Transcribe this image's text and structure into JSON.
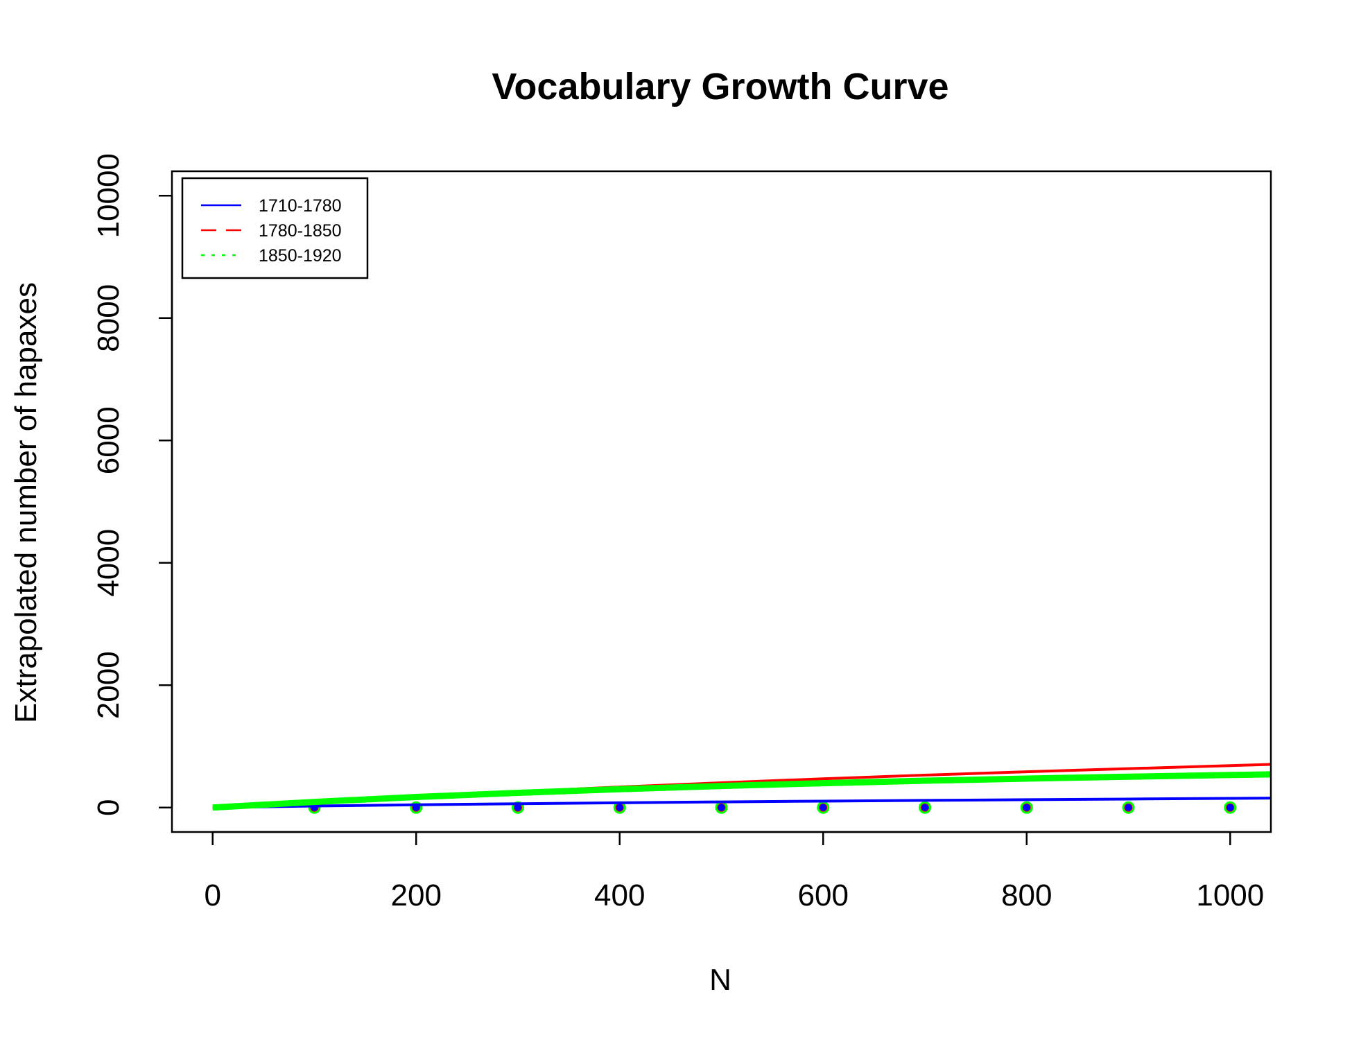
{
  "chart_data": {
    "type": "line",
    "title": "Vocabulary Growth Curve",
    "xlabel": "N",
    "ylabel": "Extrapolated number of hapaxes",
    "xlim": [
      -40,
      1040
    ],
    "ylim": [
      -400,
      10400
    ],
    "x_ticks": [
      0,
      200,
      400,
      600,
      800,
      1000
    ],
    "x_tick_labels": [
      "0",
      "200",
      "400",
      "600",
      "800",
      "1000"
    ],
    "y_ticks": [
      0,
      2000,
      4000,
      6000,
      8000,
      10000
    ],
    "y_tick_labels": [
      "0",
      "2000",
      "4000",
      "6000",
      "8000",
      "10000"
    ],
    "grid": false,
    "legend_position": "top-left",
    "x": [
      0,
      100,
      200,
      300,
      400,
      500,
      600,
      700,
      800,
      900,
      1000,
      1040
    ],
    "series": [
      {
        "name": "1710-1780",
        "color": "#0000ff",
        "dash": "solid",
        "values": [
          0,
          25,
          45,
          62,
          78,
          92,
          105,
          117,
          128,
          139,
          150,
          154
        ]
      },
      {
        "name": "1780-1850",
        "color": "#ff0000",
        "dash": "dashed",
        "values": [
          0,
          95,
          180,
          260,
          335,
          405,
          470,
          530,
          585,
          635,
          685,
          705
        ]
      },
      {
        "name": "1850-1920",
        "color": "#00ff00",
        "dash": "dotted",
        "values": [
          0,
          92,
          172,
          240,
          300,
          352,
          398,
          438,
          473,
          504,
          532,
          542
        ]
      }
    ],
    "points": {
      "x": [
        100,
        200,
        300,
        400,
        500,
        600,
        700,
        800,
        900,
        1000
      ],
      "y": [
        0,
        0,
        0,
        0,
        0,
        0,
        0,
        0,
        0,
        0
      ]
    }
  }
}
